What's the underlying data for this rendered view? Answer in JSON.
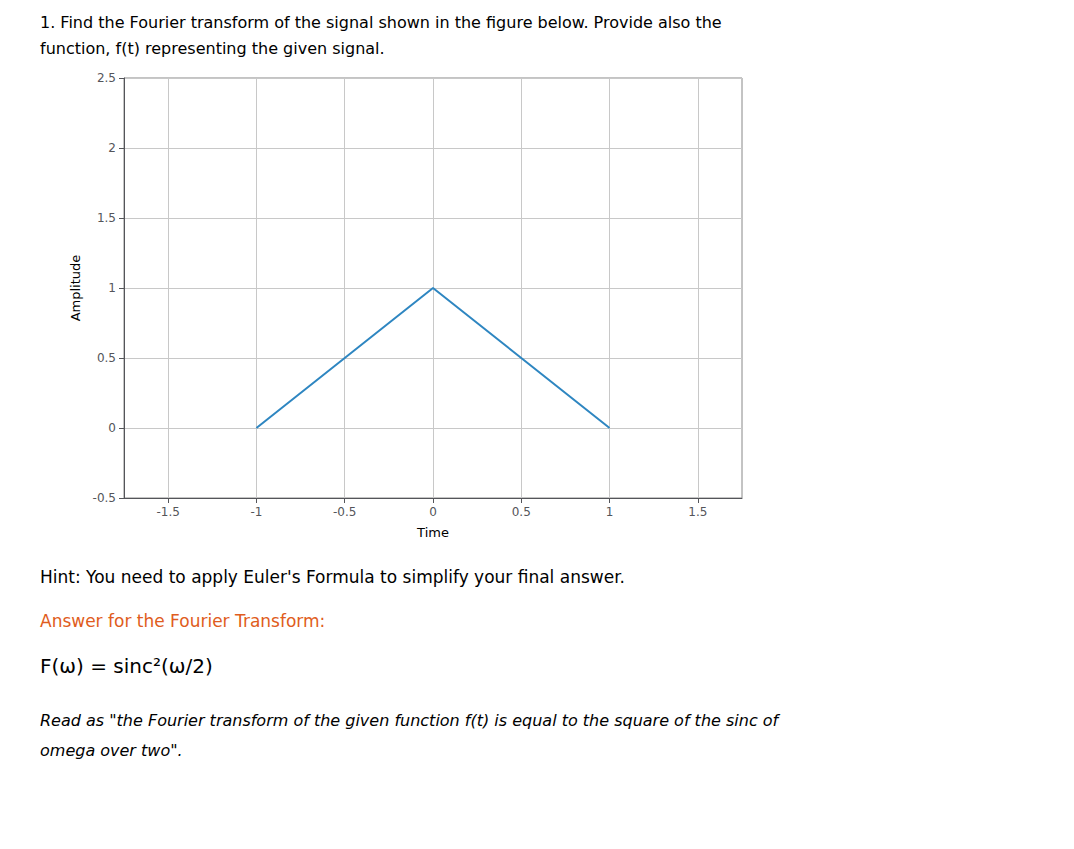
{
  "chart_data": {
    "type": "line",
    "annotations": [
      "1. Find the Fourier transform of the signal shown in the figure below. Provide also the",
      "function, f(t) representing the given signal.",
      "Hint: You need to apply Euler's Formula to simplify your final answer.",
      {
        "text": "Answer for the Fourier Transform:",
        "color": "#e05c20"
      },
      "F(ω) = sinc²(ω/2)",
      "Read as \"the Fourier transform of the given function f(t) is equal to the square of the sinc of",
      "omega over two\"."
    ],
    "xlabel": "Time",
    "ylabel": "Amplitude",
    "x": [
      -1.0,
      0.0,
      1.0
    ],
    "values": [
      0.0,
      1.0,
      0.0
    ],
    "color": "#2e86c1",
    "xlim": [
      -1.75,
      1.75
    ],
    "ylim": [
      -0.5,
      2.5
    ],
    "xticks": [
      -1.5,
      -1,
      -0.5,
      0,
      0.5,
      1,
      1.5
    ],
    "yticks": [
      -0.5,
      0,
      0.5,
      1,
      1.5,
      2,
      2.5
    ],
    "grid": true
  }
}
